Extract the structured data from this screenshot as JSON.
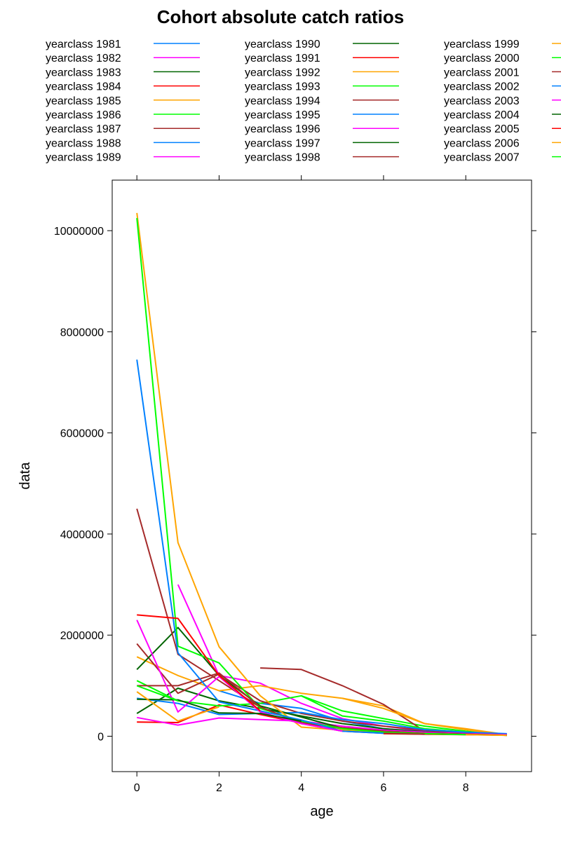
{
  "chart_data": {
    "type": "line",
    "title": "Cohort absolute catch ratios",
    "xlabel": "age",
    "ylabel": "data",
    "xlim": [
      -0.6,
      9.6
    ],
    "ylim": [
      -700000,
      11000000
    ],
    "xticks": [
      "0",
      "2",
      "4",
      "6",
      "8"
    ],
    "yticks": [
      "0",
      "2000000",
      "4000000",
      "6000000",
      "8000000",
      "10000000"
    ],
    "grid": false,
    "legend_position": "top",
    "legend_columns": 3,
    "series": [
      {
        "name": "yearclass 1981",
        "color": "#0080ff",
        "x": [
          9
        ],
        "values": [
          20000
        ]
      },
      {
        "name": "yearclass 1982",
        "color": "#ff00ff",
        "x": [
          8,
          9
        ],
        "values": [
          40000,
          30000
        ]
      },
      {
        "name": "yearclass 1983",
        "color": "#006400",
        "x": [
          7,
          8,
          9
        ],
        "values": [
          60000,
          50000,
          40000
        ]
      },
      {
        "name": "yearclass 1984",
        "color": "#ff0000",
        "x": [
          6,
          7,
          8,
          9
        ],
        "values": [
          50000,
          40000,
          30000,
          20000
        ]
      },
      {
        "name": "yearclass 1985",
        "color": "#ffa500",
        "x": [
          5,
          6,
          7,
          8,
          9
        ],
        "values": [
          750000,
          600000,
          250000,
          150000,
          30000
        ]
      },
      {
        "name": "yearclass 1986",
        "color": "#00ff00",
        "x": [
          4,
          5,
          6,
          7,
          8,
          9
        ],
        "values": [
          800000,
          500000,
          350000,
          200000,
          100000,
          20000
        ]
      },
      {
        "name": "yearclass 1987",
        "color": "#a52a2a",
        "x": [
          3,
          4,
          5,
          6,
          7,
          8,
          9
        ],
        "values": [
          1350000,
          1320000,
          1000000,
          630000,
          100000,
          50000,
          30000
        ]
      },
      {
        "name": "yearclass 1988",
        "color": "#0080ff",
        "x": [
          2,
          3,
          4,
          5,
          6,
          7,
          8,
          9
        ],
        "values": [
          900000,
          650000,
          550000,
          300000,
          150000,
          80000,
          50000,
          30000
        ]
      },
      {
        "name": "yearclass 1989",
        "color": "#ff00ff",
        "x": [
          1,
          2,
          3,
          4,
          5,
          6,
          7,
          8,
          9
        ],
        "values": [
          3000000,
          1200000,
          1050000,
          650000,
          350000,
          200000,
          100000,
          60000,
          40000
        ]
      },
      {
        "name": "yearclass 1990",
        "color": "#006400",
        "x": [
          0,
          1,
          2,
          3,
          4,
          5,
          6,
          7,
          8,
          9
        ],
        "values": [
          450000,
          950000,
          700000,
          550000,
          400000,
          250000,
          150000,
          90000,
          60000,
          40000
        ]
      },
      {
        "name": "yearclass 1991",
        "color": "#ff0000",
        "x": [
          0,
          1,
          2,
          3,
          4,
          5,
          6,
          7,
          8,
          9
        ],
        "values": [
          280000,
          270000,
          620000,
          430000,
          260000,
          150000,
          100000,
          70000,
          50000,
          30000
        ]
      },
      {
        "name": "yearclass 1992",
        "color": "#ffa500",
        "x": [
          0,
          1,
          2,
          3,
          4,
          5,
          6,
          7,
          8,
          9
        ],
        "values": [
          1570000,
          1200000,
          900000,
          1000000,
          850000,
          750000,
          550000,
          250000,
          130000,
          20000
        ]
      },
      {
        "name": "yearclass 1993",
        "color": "#00ff00",
        "x": [
          0,
          1,
          2,
          3,
          4,
          5,
          6,
          7,
          8,
          9
        ],
        "values": [
          1100000,
          700000,
          600000,
          650000,
          800000,
          400000,
          300000,
          150000,
          80000,
          40000
        ]
      },
      {
        "name": "yearclass 1994",
        "color": "#a52a2a",
        "x": [
          0,
          1,
          2,
          3,
          4,
          5,
          6,
          7,
          8,
          9
        ],
        "values": [
          1830000,
          850000,
          1230000,
          700000,
          450000,
          300000,
          200000,
          120000,
          70000,
          40000
        ]
      },
      {
        "name": "yearclass 1995",
        "color": "#0080ff",
        "x": [
          0,
          1,
          2,
          3,
          4,
          5,
          6,
          7,
          8,
          9
        ],
        "values": [
          750000,
          650000,
          430000,
          450000,
          470000,
          330000,
          250000,
          130000,
          80000,
          50000
        ]
      },
      {
        "name": "yearclass 1996",
        "color": "#ff00ff",
        "x": [
          0,
          1,
          2,
          3,
          4,
          5,
          6,
          7,
          8,
          9
        ],
        "values": [
          370000,
          220000,
          360000,
          330000,
          300000,
          200000,
          120000,
          80000,
          50000,
          30000
        ]
      },
      {
        "name": "yearclass 1997",
        "color": "#006400",
        "x": [
          0,
          1,
          2,
          3,
          4,
          5,
          6,
          7,
          8,
          9
        ],
        "values": [
          1320000,
          2150000,
          1200000,
          600000,
          380000,
          160000,
          100000,
          60000,
          40000,
          20000
        ]
      },
      {
        "name": "yearclass 1998",
        "color": "#a52a2a",
        "x": [
          0,
          1,
          2,
          3,
          4,
          5,
          6,
          7,
          8,
          9
        ],
        "values": [
          4500000,
          1620000,
          1100000,
          570000,
          270000,
          170000,
          100000,
          60000,
          40000,
          20000
        ]
      },
      {
        "name": "yearclass 1999",
        "color": "#ffa500",
        "x": [
          0,
          1,
          2,
          3,
          4,
          5,
          6,
          7,
          8,
          9
        ],
        "values": [
          10350000,
          3830000,
          1770000,
          800000,
          180000,
          120000,
          80000,
          50000,
          30000,
          20000
        ]
      },
      {
        "name": "yearclass 2000",
        "color": "#00ff00",
        "x": [
          0,
          1,
          2,
          3,
          4,
          5,
          6,
          7,
          8
        ],
        "values": [
          10250000,
          1780000,
          1450000,
          550000,
          300000,
          150000,
          80000,
          50000,
          30000
        ]
      },
      {
        "name": "yearclass 2001",
        "color": "#a52a2a",
        "x": [
          0,
          1,
          2,
          3,
          4,
          5,
          6,
          7
        ],
        "values": [
          1000000,
          1000000,
          1250000,
          580000,
          250000,
          100000,
          60000,
          40000
        ]
      },
      {
        "name": "yearclass 2002",
        "color": "#0080ff",
        "x": [
          0,
          1,
          2,
          3,
          4,
          5,
          6
        ],
        "values": [
          7450000,
          1650000,
          680000,
          500000,
          320000,
          100000,
          60000
        ]
      },
      {
        "name": "yearclass 2003",
        "color": "#ff00ff",
        "x": [
          0,
          1,
          2,
          3,
          4,
          5
        ],
        "values": [
          2300000,
          480000,
          1180000,
          480000,
          250000,
          100000
        ]
      },
      {
        "name": "yearclass 2004",
        "color": "#006400",
        "x": [
          0,
          1,
          2,
          3,
          4
        ],
        "values": [
          730000,
          720000,
          460000,
          450000,
          300000
        ]
      },
      {
        "name": "yearclass 2005",
        "color": "#ff0000",
        "x": [
          0,
          1,
          2,
          3
        ],
        "values": [
          2400000,
          2330000,
          1200000,
          500000
        ]
      },
      {
        "name": "yearclass 2006",
        "color": "#ffa500",
        "x": [
          0,
          1,
          2
        ],
        "values": [
          880000,
          300000,
          580000
        ]
      },
      {
        "name": "yearclass 2007",
        "color": "#00ff00",
        "x": [
          0,
          1
        ],
        "values": [
          1000000,
          700000
        ]
      }
    ]
  }
}
